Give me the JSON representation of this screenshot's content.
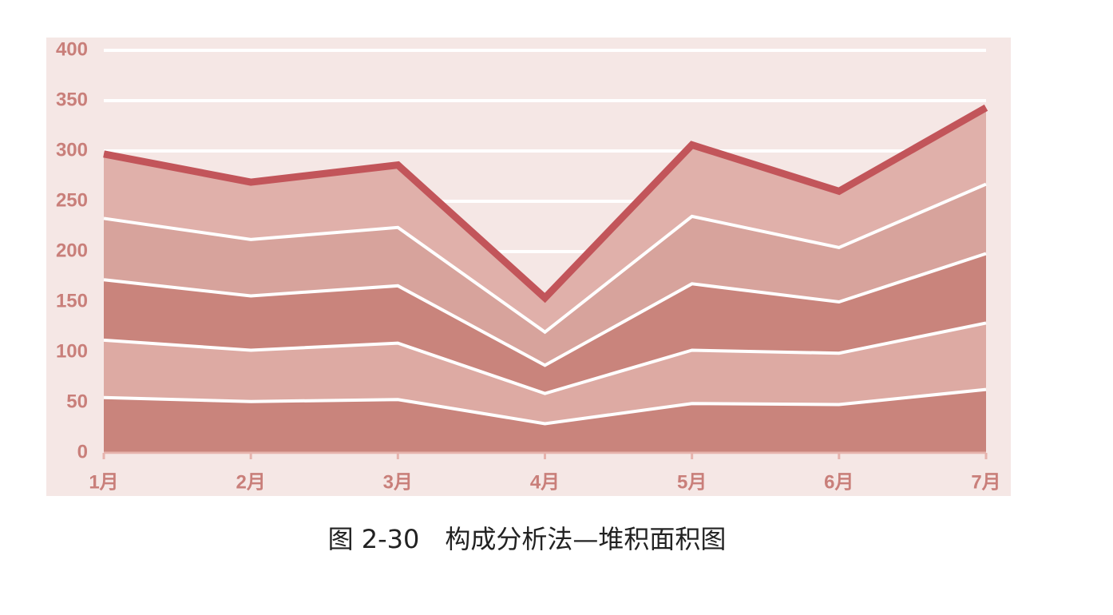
{
  "chart_data": {
    "type": "stacked_area",
    "title": "图 2-30　构成分析法—堆积面积图",
    "categories": [
      "1月",
      "2月",
      "3月",
      "4月",
      "5月",
      "6月",
      "7月"
    ],
    "series": [
      {
        "color": "#c9847c",
        "values": [
          55,
          51,
          53,
          29,
          49,
          48,
          63
        ]
      },
      {
        "color": "#ddaaa3",
        "values": [
          57,
          51,
          56,
          30,
          53,
          51,
          66
        ]
      },
      {
        "color": "#c9847c",
        "values": [
          60,
          54,
          57,
          28,
          66,
          51,
          69
        ]
      },
      {
        "color": "#d7a39c",
        "values": [
          61,
          56,
          58,
          33,
          67,
          54,
          69
        ]
      },
      {
        "color": "#e0b0aa",
        "values": [
          64,
          57,
          62,
          34,
          71,
          56,
          76
        ]
      }
    ],
    "top_line_color": "#c2555a",
    "ylim": [
      0,
      400
    ],
    "yticks": [
      0,
      50,
      100,
      150,
      200,
      250,
      300,
      350,
      400
    ],
    "grid": true
  }
}
